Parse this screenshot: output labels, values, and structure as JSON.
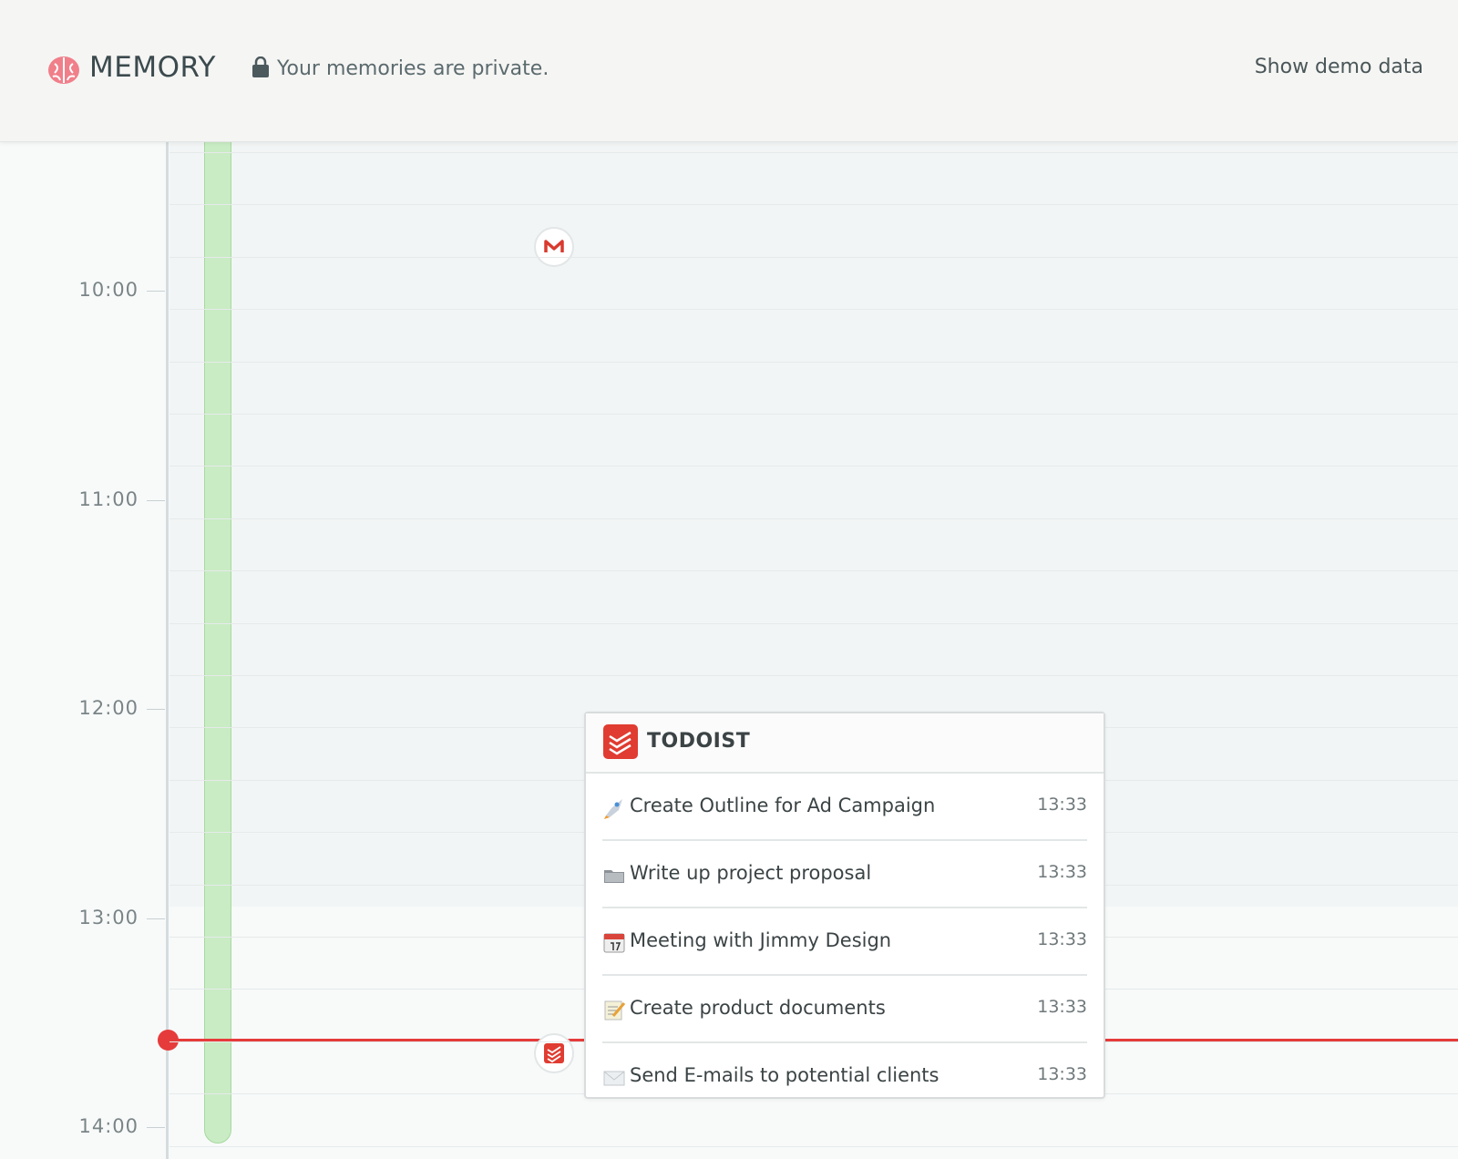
{
  "header": {
    "brand": "MEMORY",
    "privacy_note": "Your memories are private.",
    "action": "Show demo data"
  },
  "timeline": {
    "hours": [
      "10:00",
      "11:00",
      "12:00",
      "13:00",
      "14:00"
    ]
  },
  "popup": {
    "title": "TODOIST",
    "items": [
      {
        "text": "Create Outline for Ad Campaign",
        "time": "13:33"
      },
      {
        "text": "Write up project proposal",
        "time": "13:33"
      },
      {
        "text": "Meeting with Jimmy Design",
        "time": "13:33"
      },
      {
        "text": "Create product documents",
        "time": "13:33"
      },
      {
        "text": "Send E-mails to potential clients",
        "time": "13:33"
      }
    ]
  }
}
